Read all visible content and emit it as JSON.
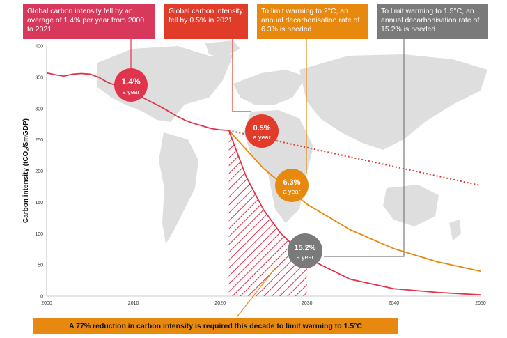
{
  "callouts": [
    {
      "text": "Global carbon intensity fell by an average of 1.4% per year from 2000 to 2021",
      "color": "#d7385b"
    },
    {
      "text": "Global carbon intensity fell by 0.5% in 2021",
      "color": "#e13b2a"
    },
    {
      "text": "To limit warming to 2°C, an annual decarbonisation rate of 6.3% is needed",
      "color": "#e8890f"
    },
    {
      "text": "To limit warming to 1.5°C, an annual decarbonisation rate of 15.2% is needed",
      "color": "#7a7a7a"
    }
  ],
  "bubbles": [
    {
      "value": "1.4%",
      "sub": "a year",
      "color": "#e0334c"
    },
    {
      "value": "0.5%",
      "sub": "a year",
      "color": "#e13b2a"
    },
    {
      "value": "6.3%",
      "sub": "a year",
      "color": "#e8890f"
    },
    {
      "value": "15.2%",
      "sub": "a year",
      "color": "#7a7a7a"
    }
  ],
  "banner": "A 77% reduction in carbon intensity is required this decade to limit warming to 1.5°C",
  "chart_data": {
    "type": "line",
    "ylabel": "Carbon intensity (tCO₂/$mGDP)",
    "xlim": [
      2000,
      2050
    ],
    "ylim": [
      0,
      400
    ],
    "x_ticks": [
      2000,
      2010,
      2020,
      2030,
      2040,
      2050
    ],
    "y_ticks": [
      0,
      50,
      100,
      150,
      200,
      250,
      300,
      350,
      400
    ],
    "series": [
      {
        "color": "#e0334c",
        "style": "solid",
        "x": [
          2000,
          2001,
          2002,
          2003,
          2004,
          2005,
          2006,
          2007,
          2008,
          2009,
          2010,
          2011,
          2012,
          2013,
          2014,
          2015,
          2016,
          2017,
          2018,
          2019,
          2020,
          2021
        ],
        "y": [
          357,
          354,
          352,
          355,
          356,
          355,
          350,
          342,
          337,
          333,
          325,
          318,
          311,
          304,
          296,
          288,
          281,
          276,
          272,
          268,
          266,
          265
        ]
      },
      {
        "color": "#e13b2a",
        "style": "dotted",
        "x": [
          2021,
          2050
        ],
        "y": [
          265,
          177
        ]
      },
      {
        "color": "#e8890f",
        "style": "solid",
        "x": [
          2021,
          2025,
          2030,
          2035,
          2040,
          2045,
          2050
        ],
        "y": [
          265,
          204,
          147,
          106,
          76,
          55,
          40
        ]
      },
      {
        "color": "#e0334c",
        "style": "solid",
        "x": [
          2021,
          2023,
          2025,
          2027,
          2030,
          2035,
          2040,
          2045,
          2050
        ],
        "y": [
          265,
          191,
          138,
          100,
          61,
          27,
          12,
          6,
          2
        ]
      }
    ],
    "annotations": [
      {
        "type": "hatched-region",
        "x": [
          2021,
          2030
        ],
        "color": "#e0334c"
      }
    ]
  }
}
